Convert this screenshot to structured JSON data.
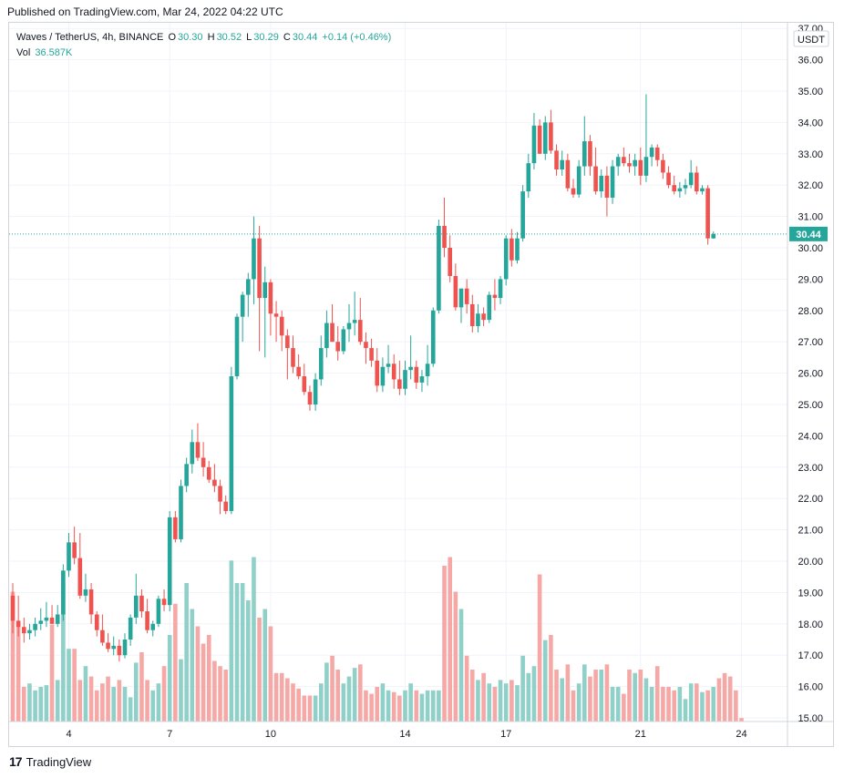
{
  "header": {
    "published": "Published on TradingView.com, Mar 24, 2022 04:22 UTC"
  },
  "legend": {
    "symbol": "Waves / TetherUS, 4h, BINANCE",
    "o_label": "O",
    "o_value": "30.30",
    "h_label": "H",
    "h_value": "30.52",
    "l_label": "L",
    "l_value": "30.29",
    "c_label": "C",
    "c_value": "30.44",
    "change": "+0.14 (+0.46%)",
    "vol_label": "Vol",
    "vol_value": "36.587K"
  },
  "footer": {
    "brand": "TradingView",
    "logo_mark": "17"
  },
  "colors": {
    "up": "#26a69a",
    "down": "#ef5350",
    "up_vol": "#8fd0c9",
    "down_vol": "#f5a8a5",
    "grid": "#f0f3fa",
    "axis_text": "#131722"
  },
  "chart_data": {
    "type": "candlestick",
    "title": "Waves / TetherUS, 4h, BINANCE",
    "currency_label": "USDT",
    "last_price": "30.44",
    "ylim": [
      15.0,
      37.0
    ],
    "y_ticks": [
      "15.00",
      "16.00",
      "17.00",
      "18.00",
      "19.00",
      "20.00",
      "21.00",
      "22.00",
      "23.00",
      "24.00",
      "25.00",
      "26.00",
      "27.00",
      "28.00",
      "29.00",
      "30.00",
      "31.00",
      "32.00",
      "33.00",
      "34.00",
      "35.00",
      "36.00",
      "37.00"
    ],
    "x_ticks": [
      {
        "label": "4",
        "index": 10
      },
      {
        "label": "7",
        "index": 28
      },
      {
        "label": "10",
        "index": 46
      },
      {
        "label": "14",
        "index": 70
      },
      {
        "label": "17",
        "index": 88
      },
      {
        "label": "21",
        "index": 112
      },
      {
        "label": "24",
        "index": 130
      }
    ],
    "candles": [
      [
        18.9,
        19.3,
        17.7,
        18.1
      ],
      [
        18.1,
        18.9,
        17.6,
        17.9
      ],
      [
        17.9,
        18.2,
        17.4,
        17.7
      ],
      [
        17.7,
        18.0,
        17.5,
        17.8
      ],
      [
        17.8,
        18.2,
        17.6,
        18.0
      ],
      [
        18.0,
        18.5,
        17.8,
        18.1
      ],
      [
        18.1,
        18.7,
        17.9,
        18.2
      ],
      [
        18.2,
        18.6,
        18.0,
        18.0
      ],
      [
        18.0,
        18.6,
        17.9,
        18.3
      ],
      [
        18.3,
        19.9,
        18.1,
        19.7
      ],
      [
        19.7,
        20.9,
        19.5,
        20.6
      ],
      [
        20.6,
        21.1,
        19.9,
        20.1
      ],
      [
        20.1,
        20.9,
        18.8,
        18.9
      ],
      [
        18.9,
        19.6,
        18.7,
        19.1
      ],
      [
        19.1,
        19.3,
        18.0,
        18.3
      ],
      [
        18.3,
        18.4,
        17.6,
        17.8
      ],
      [
        17.8,
        18.3,
        17.3,
        17.4
      ],
      [
        17.4,
        17.7,
        17.1,
        17.2
      ],
      [
        17.2,
        17.6,
        17.0,
        17.3
      ],
      [
        17.3,
        17.5,
        16.8,
        17.0
      ],
      [
        17.0,
        17.7,
        16.9,
        17.5
      ],
      [
        17.5,
        18.3,
        17.3,
        18.2
      ],
      [
        18.2,
        19.6,
        18.0,
        18.9
      ],
      [
        18.9,
        19.1,
        18.2,
        18.4
      ],
      [
        18.4,
        18.8,
        17.7,
        17.8
      ],
      [
        17.8,
        18.1,
        17.6,
        18.0
      ],
      [
        18.0,
        18.9,
        17.9,
        18.8
      ],
      [
        18.8,
        19.1,
        18.4,
        18.6
      ],
      [
        18.6,
        21.6,
        18.4,
        21.4
      ],
      [
        21.4,
        21.6,
        20.6,
        20.7
      ],
      [
        20.7,
        22.6,
        20.6,
        22.4
      ],
      [
        22.4,
        23.3,
        22.2,
        23.1
      ],
      [
        23.1,
        24.2,
        22.8,
        23.8
      ],
      [
        23.8,
        24.4,
        23.2,
        23.3
      ],
      [
        23.3,
        23.8,
        22.7,
        23.0
      ],
      [
        23.0,
        23.2,
        22.5,
        22.6
      ],
      [
        22.6,
        23.1,
        22.2,
        22.4
      ],
      [
        22.4,
        22.6,
        21.5,
        21.9
      ],
      [
        21.9,
        22.1,
        21.5,
        21.6
      ],
      [
        21.6,
        26.2,
        21.5,
        25.9
      ],
      [
        25.9,
        27.9,
        25.8,
        27.8
      ],
      [
        27.8,
        28.6,
        27.0,
        28.5
      ],
      [
        28.5,
        29.2,
        27.8,
        29.0
      ],
      [
        29.0,
        31.0,
        28.2,
        30.3
      ],
      [
        30.3,
        30.7,
        26.7,
        28.4
      ],
      [
        28.4,
        29.4,
        26.5,
        28.9
      ],
      [
        28.9,
        29.0,
        27.2,
        27.9
      ],
      [
        27.9,
        28.3,
        27.0,
        27.8
      ],
      [
        27.8,
        28.0,
        26.7,
        27.2
      ],
      [
        27.2,
        27.4,
        25.8,
        26.8
      ],
      [
        26.8,
        27.2,
        26.0,
        26.2
      ],
      [
        26.2,
        26.6,
        25.8,
        25.9
      ],
      [
        25.9,
        26.3,
        25.3,
        25.4
      ],
      [
        25.4,
        25.6,
        24.8,
        25.0
      ],
      [
        25.0,
        26.0,
        24.8,
        25.8
      ],
      [
        25.8,
        27.2,
        25.6,
        26.8
      ],
      [
        26.8,
        28.0,
        26.5,
        27.6
      ],
      [
        27.6,
        28.2,
        27.0,
        27.0
      ],
      [
        27.0,
        27.5,
        26.4,
        26.7
      ],
      [
        26.7,
        27.5,
        26.6,
        27.4
      ],
      [
        27.4,
        28.2,
        27.0,
        27.6
      ],
      [
        27.6,
        28.6,
        27.2,
        27.7
      ],
      [
        27.7,
        28.4,
        26.9,
        27.0
      ],
      [
        27.0,
        27.3,
        26.3,
        26.8
      ],
      [
        26.8,
        27.1,
        26.2,
        26.4
      ],
      [
        26.4,
        26.8,
        25.4,
        25.6
      ],
      [
        25.6,
        26.5,
        25.4,
        26.2
      ],
      [
        26.2,
        26.9,
        26.0,
        26.3
      ],
      [
        26.3,
        26.6,
        25.5,
        25.8
      ],
      [
        25.8,
        26.4,
        25.3,
        25.5
      ],
      [
        25.5,
        26.4,
        25.3,
        26.1
      ],
      [
        26.1,
        27.2,
        25.8,
        26.2
      ],
      [
        26.2,
        26.4,
        25.5,
        25.7
      ],
      [
        25.7,
        26.1,
        25.4,
        25.9
      ],
      [
        25.9,
        26.9,
        25.6,
        26.3
      ],
      [
        26.3,
        28.1,
        26.2,
        28.0
      ],
      [
        28.0,
        30.9,
        27.9,
        30.7
      ],
      [
        30.7,
        31.6,
        29.7,
        30.0
      ],
      [
        30.0,
        30.4,
        28.9,
        29.1
      ],
      [
        29.1,
        29.5,
        28.0,
        28.1
      ],
      [
        28.1,
        28.7,
        27.6,
        28.7
      ],
      [
        28.7,
        29.0,
        27.9,
        28.2
      ],
      [
        28.2,
        28.5,
        27.3,
        27.5
      ],
      [
        27.5,
        28.2,
        27.3,
        27.9
      ],
      [
        27.9,
        28.1,
        27.5,
        27.7
      ],
      [
        27.7,
        28.6,
        27.6,
        28.5
      ],
      [
        28.5,
        29.0,
        28.0,
        28.4
      ],
      [
        28.4,
        29.1,
        28.2,
        29.0
      ],
      [
        29.0,
        30.4,
        28.8,
        30.3
      ],
      [
        30.3,
        30.6,
        29.4,
        29.6
      ],
      [
        29.6,
        30.5,
        29.5,
        30.3
      ],
      [
        30.3,
        32.0,
        30.2,
        31.8
      ],
      [
        31.8,
        33.0,
        31.6,
        32.7
      ],
      [
        32.7,
        34.3,
        32.5,
        33.9
      ],
      [
        33.9,
        34.1,
        33.0,
        33.0
      ],
      [
        33.0,
        34.2,
        32.8,
        34.0
      ],
      [
        34.0,
        34.4,
        33.0,
        33.1
      ],
      [
        33.1,
        33.3,
        32.3,
        32.5
      ],
      [
        32.5,
        33.1,
        32.3,
        32.8
      ],
      [
        32.8,
        33.0,
        31.8,
        31.9
      ],
      [
        31.9,
        32.2,
        31.6,
        31.7
      ],
      [
        31.7,
        32.8,
        31.6,
        32.6
      ],
      [
        32.6,
        34.2,
        32.3,
        33.4
      ],
      [
        33.4,
        33.6,
        32.3,
        32.6
      ],
      [
        32.6,
        33.2,
        31.7,
        31.8
      ],
      [
        31.8,
        32.5,
        31.6,
        32.3
      ],
      [
        32.3,
        32.6,
        31.0,
        31.6
      ],
      [
        31.6,
        32.8,
        31.4,
        32.6
      ],
      [
        32.6,
        33.0,
        32.3,
        32.9
      ],
      [
        32.9,
        33.2,
        32.6,
        32.7
      ],
      [
        32.7,
        33.0,
        32.4,
        32.6
      ],
      [
        32.6,
        33.0,
        32.3,
        32.8
      ],
      [
        32.8,
        33.2,
        32.0,
        32.3
      ],
      [
        32.3,
        34.9,
        32.1,
        32.9
      ],
      [
        32.9,
        33.3,
        32.6,
        33.2
      ],
      [
        33.2,
        33.3,
        32.6,
        32.8
      ],
      [
        32.8,
        33.0,
        32.2,
        32.4
      ],
      [
        32.4,
        32.6,
        31.9,
        32.0
      ],
      [
        32.0,
        32.3,
        31.7,
        31.8
      ],
      [
        31.8,
        32.1,
        31.6,
        31.9
      ],
      [
        31.9,
        32.2,
        31.7,
        32.0
      ],
      [
        32.0,
        32.8,
        31.9,
        32.4
      ],
      [
        32.4,
        32.6,
        31.7,
        31.8
      ],
      [
        31.8,
        32.0,
        31.7,
        31.9
      ],
      [
        31.9,
        32.0,
        30.1,
        30.3
      ],
      [
        30.3,
        30.52,
        30.29,
        30.44
      ]
    ],
    "volume": [
      75,
      55,
      20,
      22,
      18,
      20,
      21,
      56,
      24,
      80,
      42,
      42,
      24,
      32,
      26,
      18,
      22,
      26,
      20,
      24,
      20,
      14,
      34,
      40,
      24,
      18,
      22,
      32,
      50,
      68,
      36,
      80,
      65,
      55,
      45,
      50,
      35,
      32,
      30,
      93,
      80,
      80,
      70,
      95,
      60,
      65,
      55,
      28,
      28,
      25,
      22,
      19,
      15,
      15,
      15,
      22,
      34,
      38,
      30,
      22,
      26,
      31,
      33,
      18,
      16,
      20,
      22,
      18,
      17,
      15,
      18,
      22,
      18,
      16,
      18,
      18,
      18,
      90,
      95,
      75,
      65,
      38,
      30,
      24,
      28,
      22,
      20,
      24,
      22,
      24,
      21,
      38,
      28,
      32,
      85,
      47,
      50,
      30,
      25,
      33,
      18,
      22,
      33,
      26,
      30,
      30,
      33,
      20,
      20,
      16,
      30,
      28,
      30,
      25,
      20,
      32,
      20,
      20,
      18,
      20,
      13,
      22,
      22,
      17,
      18,
      20,
      25,
      28,
      26,
      18,
      2
    ]
  }
}
